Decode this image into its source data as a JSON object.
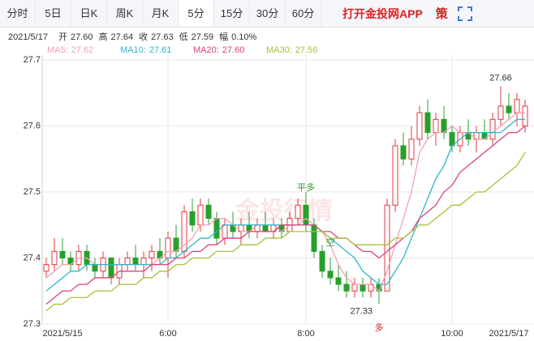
{
  "tabs": {
    "items": [
      "分时",
      "5日",
      "日K",
      "周K",
      "月K",
      "5分",
      "15分",
      "30分",
      "60分"
    ],
    "active": 5,
    "app": "打开金投网APP",
    "extra": "策"
  },
  "info": {
    "date": "2021/5/17",
    "items": [
      {
        "label": "开",
        "value": "27.60"
      },
      {
        "label": "高",
        "value": "27.64"
      },
      {
        "label": "收",
        "value": "27.63"
      },
      {
        "label": "低",
        "value": "27.59"
      },
      {
        "label": "幅",
        "value": "0.10%"
      }
    ]
  },
  "chart_data": {
    "type": "candlestick",
    "watermark": "金投行情",
    "categories": [
      null,
      null,
      "2021/5/15",
      null,
      null,
      null,
      null,
      null,
      null,
      null,
      null,
      null,
      null,
      null,
      null,
      "6:00",
      null,
      null,
      null,
      null,
      null,
      null,
      null,
      null,
      null,
      null,
      null,
      null,
      null,
      null,
      null,
      null,
      "8:00",
      null,
      null,
      null,
      null,
      null,
      null,
      null,
      null,
      null,
      null,
      null,
      null,
      null,
      null,
      null,
      null,
      null,
      "10:00",
      null,
      null,
      null,
      null,
      null,
      null,
      "2021/5/17",
      null,
      null
    ],
    "open": [
      27.38,
      27.39,
      27.41,
      27.4,
      27.39,
      27.41,
      27.39,
      27.38,
      27.4,
      27.37,
      27.39,
      27.4,
      27.39,
      27.4,
      27.41,
      27.4,
      27.43,
      27.41,
      27.47,
      27.45,
      27.48,
      27.46,
      27.43,
      27.45,
      27.44,
      27.45,
      27.44,
      27.45,
      27.44,
      27.45,
      27.44,
      27.46,
      27.48,
      27.45,
      27.41,
      27.38,
      27.37,
      27.36,
      27.35,
      27.36,
      27.35,
      27.36,
      27.35,
      27.48,
      27.57,
      27.55,
      27.58,
      27.62,
      27.59,
      27.61,
      27.59,
      27.57,
      27.59,
      27.58,
      27.59,
      27.58,
      27.61,
      27.63,
      27.62,
      27.6
    ],
    "high": [
      27.4,
      27.43,
      27.43,
      27.41,
      27.42,
      27.42,
      27.4,
      27.41,
      27.4,
      27.4,
      27.41,
      27.42,
      27.41,
      27.42,
      27.43,
      27.44,
      27.45,
      27.48,
      27.49,
      27.49,
      27.49,
      27.47,
      27.46,
      27.47,
      27.46,
      27.47,
      27.46,
      27.47,
      27.46,
      27.46,
      27.47,
      27.49,
      27.5,
      27.46,
      27.42,
      27.4,
      27.39,
      27.38,
      27.37,
      27.37,
      27.37,
      27.37,
      27.49,
      27.58,
      27.59,
      27.6,
      27.63,
      27.64,
      27.62,
      27.63,
      27.6,
      27.6,
      27.61,
      27.6,
      27.61,
      27.62,
      27.66,
      27.65,
      27.65,
      27.64
    ],
    "low": [
      27.37,
      27.38,
      27.39,
      27.38,
      27.38,
      27.38,
      27.37,
      27.37,
      27.36,
      27.36,
      27.38,
      27.38,
      27.37,
      27.38,
      27.39,
      27.37,
      27.4,
      27.4,
      27.44,
      27.44,
      27.45,
      27.42,
      27.42,
      27.43,
      27.42,
      27.43,
      27.43,
      27.44,
      27.43,
      27.43,
      27.44,
      27.45,
      27.44,
      27.4,
      27.37,
      27.36,
      27.35,
      27.34,
      27.34,
      27.34,
      27.34,
      27.33,
      27.35,
      27.47,
      27.54,
      27.54,
      27.57,
      27.58,
      27.57,
      27.58,
      27.56,
      27.56,
      27.57,
      27.56,
      27.58,
      27.57,
      27.6,
      27.61,
      27.6,
      27.59
    ],
    "close": [
      27.39,
      27.41,
      27.4,
      27.39,
      27.41,
      27.39,
      27.38,
      27.4,
      27.37,
      27.39,
      27.4,
      27.39,
      27.4,
      27.41,
      27.4,
      27.43,
      27.41,
      27.47,
      27.45,
      27.48,
      27.46,
      27.43,
      27.45,
      27.44,
      27.45,
      27.44,
      27.45,
      27.44,
      27.45,
      27.44,
      27.46,
      27.48,
      27.45,
      27.41,
      27.38,
      27.37,
      27.36,
      27.35,
      27.36,
      27.35,
      27.36,
      27.35,
      27.48,
      27.57,
      27.55,
      27.58,
      27.62,
      27.59,
      27.61,
      27.59,
      27.57,
      27.59,
      27.58,
      27.59,
      27.58,
      27.61,
      27.63,
      27.62,
      27.64,
      27.63
    ],
    "up_color": "#e0383c",
    "down_color": "#27a02a",
    "series": [
      {
        "name": "MA5:",
        "current": "27.62",
        "color": "#f4a0b4",
        "values": [
          27.37,
          27.38,
          27.39,
          27.39,
          27.4,
          27.4,
          27.39,
          27.39,
          27.39,
          27.39,
          27.39,
          27.39,
          27.39,
          27.39,
          27.4,
          27.41,
          27.41,
          27.42,
          27.43,
          27.45,
          27.45,
          27.46,
          27.46,
          27.45,
          27.44,
          27.44,
          27.45,
          27.45,
          27.45,
          27.44,
          27.45,
          27.45,
          27.46,
          27.45,
          27.44,
          27.42,
          27.39,
          27.37,
          27.36,
          27.36,
          27.36,
          27.35,
          27.38,
          27.42,
          27.46,
          27.5,
          27.56,
          27.58,
          27.59,
          27.59,
          27.6,
          27.59,
          27.59,
          27.58,
          27.58,
          27.59,
          27.6,
          27.61,
          27.62,
          27.62
        ]
      },
      {
        "name": "MA10:",
        "current": "27.61",
        "color": "#2ab8cf",
        "values": [
          27.35,
          27.36,
          27.37,
          27.38,
          27.38,
          27.39,
          27.39,
          27.39,
          27.39,
          27.39,
          27.39,
          27.39,
          27.39,
          27.39,
          27.39,
          27.4,
          27.4,
          27.41,
          27.42,
          27.43,
          27.43,
          27.44,
          27.45,
          27.45,
          27.45,
          27.45,
          27.45,
          27.45,
          27.45,
          27.45,
          27.45,
          27.45,
          27.45,
          27.45,
          27.44,
          27.43,
          27.42,
          27.41,
          27.4,
          27.38,
          27.37,
          27.36,
          27.36,
          27.38,
          27.4,
          27.43,
          27.46,
          27.49,
          27.52,
          27.54,
          27.57,
          27.58,
          27.59,
          27.59,
          27.59,
          27.59,
          27.59,
          27.6,
          27.61,
          27.61
        ]
      },
      {
        "name": "MA20:",
        "current": "27.60",
        "color": "#e0407a",
        "values": [
          27.33,
          27.34,
          27.35,
          27.35,
          27.36,
          27.36,
          27.37,
          27.37,
          27.37,
          27.38,
          27.38,
          27.38,
          27.38,
          27.39,
          27.39,
          27.39,
          27.4,
          27.4,
          27.41,
          27.41,
          27.42,
          27.42,
          27.43,
          27.43,
          27.43,
          27.44,
          27.44,
          27.44,
          27.44,
          27.45,
          27.45,
          27.45,
          27.45,
          27.45,
          27.44,
          27.44,
          27.43,
          27.43,
          27.42,
          27.41,
          27.41,
          27.4,
          27.41,
          27.42,
          27.43,
          27.44,
          27.46,
          27.47,
          27.48,
          27.5,
          27.51,
          27.53,
          27.54,
          27.55,
          27.56,
          27.57,
          27.58,
          27.59,
          27.59,
          27.6
        ]
      },
      {
        "name": "MA30:",
        "current": "27.56",
        "color": "#a8c03a",
        "values": [
          27.32,
          27.33,
          27.33,
          27.34,
          27.34,
          27.34,
          27.35,
          27.35,
          27.35,
          27.36,
          27.36,
          27.36,
          27.37,
          27.37,
          27.38,
          27.38,
          27.39,
          27.39,
          27.4,
          27.4,
          27.4,
          27.41,
          27.41,
          27.41,
          27.42,
          27.42,
          27.42,
          27.43,
          27.43,
          27.43,
          27.44,
          27.44,
          27.44,
          27.44,
          27.44,
          27.43,
          27.43,
          27.43,
          27.42,
          27.42,
          27.42,
          27.42,
          27.42,
          27.43,
          27.43,
          27.44,
          27.45,
          27.45,
          27.46,
          27.47,
          27.48,
          27.48,
          27.49,
          27.5,
          27.5,
          27.51,
          27.52,
          27.53,
          27.54,
          27.56
        ]
      }
    ],
    "max_label": "27.66",
    "min_label": "27.33",
    "signals": [
      {
        "text": "平多"
      },
      {
        "text": "空"
      },
      {
        "text": "多"
      }
    ],
    "ylim": [
      27.3,
      27.7
    ],
    "yticks": [
      27.3,
      27.4,
      27.5,
      27.6,
      27.7
    ],
    "grid": true
  }
}
